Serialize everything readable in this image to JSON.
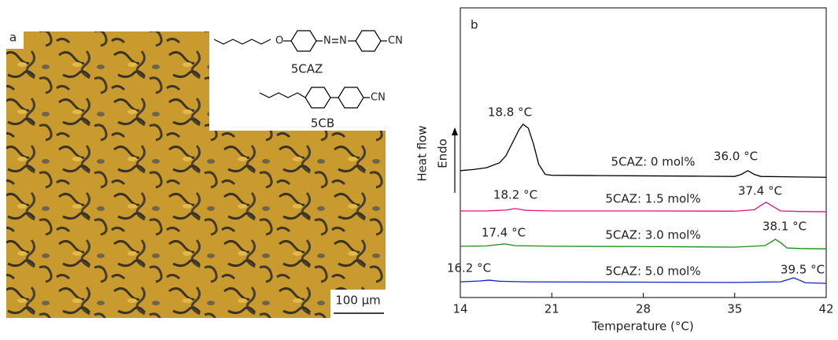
{
  "panel_a": {
    "label": "a",
    "scale_bar": "100 µm",
    "structures": [
      {
        "name": "5CAZ",
        "atoms": [
          "O",
          "N",
          "N",
          "CN"
        ]
      },
      {
        "name": "5CB",
        "atoms": [
          "CN"
        ]
      }
    ]
  },
  "chart_data": {
    "type": "line",
    "panel_label": "b",
    "x_label": "Temperature (°C)",
    "y_label": "Heat flow",
    "y_arrow_label": "Endo",
    "xlim": [
      14,
      42
    ],
    "xticks": [
      14,
      21,
      28,
      35,
      42
    ],
    "ylim": [
      0,
      100
    ],
    "series": [
      {
        "name": "5CAZ: 0 mol%",
        "color": "#000000",
        "x": [
          14,
          15,
          16,
          17,
          17.5,
          18,
          18.5,
          18.8,
          19.2,
          19.6,
          20,
          20.5,
          21,
          24,
          28,
          32,
          35,
          35.5,
          36,
          36.5,
          37,
          40,
          42
        ],
        "values": [
          43.8,
          44.2,
          44.8,
          46.5,
          49,
          53.5,
          58,
          59.8,
          58.5,
          53,
          46,
          42.5,
          42.2,
          42.1,
          42,
          41.9,
          41.8,
          42.5,
          43.8,
          42.5,
          41.8,
          41.6,
          41.5
        ]
      },
      {
        "name": "5CAZ: 1.5 mol%",
        "color": "#e0147a",
        "x": [
          14,
          16,
          17.5,
          18.2,
          19,
          21,
          28,
          35,
          36.5,
          37,
          37.4,
          37.9,
          38.5,
          40,
          42
        ],
        "values": [
          29.9,
          29.9,
          30.2,
          30.7,
          30.1,
          29.9,
          29.9,
          29.8,
          30.3,
          31.8,
          32.9,
          31.5,
          29.9,
          29.7,
          29.6
        ]
      },
      {
        "name": "5CAZ: 3.0 mol%",
        "color": "#1a8a1a",
        "x": [
          14,
          16,
          16.8,
          17.4,
          18.2,
          21,
          28,
          35,
          37.3,
          37.8,
          38.1,
          38.5,
          39,
          40,
          42
        ],
        "values": [
          17.7,
          17.8,
          18.2,
          18.5,
          17.9,
          17.7,
          17.6,
          17.4,
          17.9,
          19.2,
          20.1,
          19,
          17.1,
          16.9,
          16.8
        ]
      },
      {
        "name": "5CAZ: 5.0 mol%",
        "color": "#1020d0",
        "x": [
          14,
          15.5,
          16.2,
          17,
          19,
          28,
          35,
          38.5,
          39.1,
          39.5,
          39.9,
          40.4,
          42
        ],
        "values": [
          5.4,
          5.7,
          6,
          5.6,
          5.4,
          5.3,
          5.2,
          5.4,
          6.2,
          6.8,
          6.1,
          5.1,
          4.9
        ]
      }
    ],
    "annotations": [
      "18.8 °C",
      "36.0 °C",
      "18.2 °C",
      "37.4 °C",
      "17.4 °C",
      "38.1 °C",
      "16.2 °C",
      "39.5 °C"
    ]
  }
}
